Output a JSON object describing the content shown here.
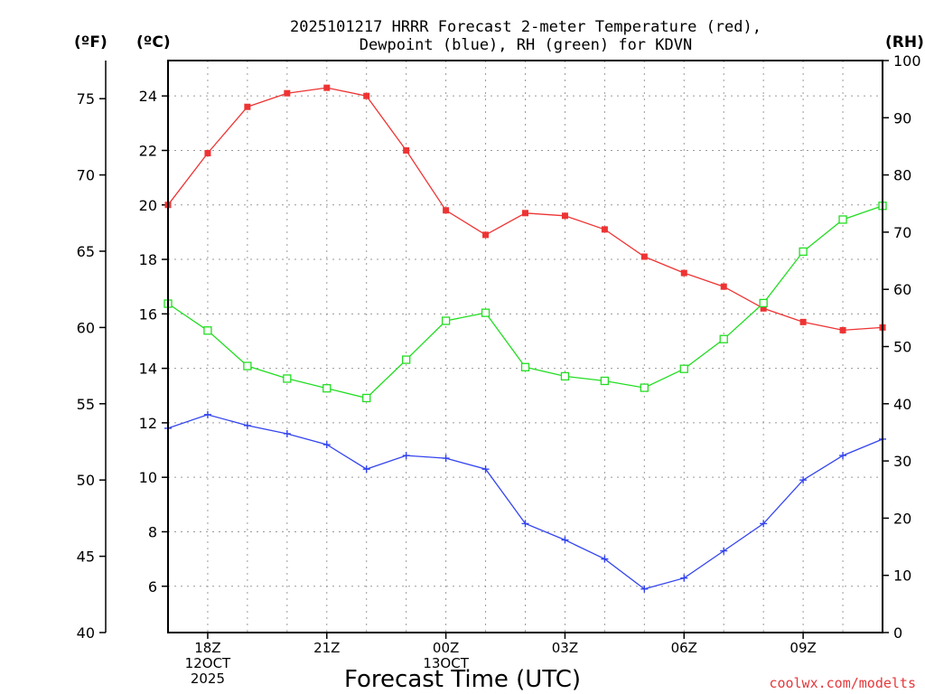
{
  "chart_data": {
    "type": "line",
    "title": "2025101217 HRRR Forecast 2-meter Temperature (red),",
    "subtitle": "Dewpoint (blue), RH (green) for KDVN",
    "xlabel": "Forecast Time (UTC)",
    "credit": "coolwx.com/modelts",
    "units": {
      "fahrenheit": "(ºF)",
      "celsius": "(ºC)",
      "rh": "(RH)"
    },
    "x": [
      17,
      18,
      19,
      20,
      21,
      22,
      23,
      24,
      25,
      26,
      27,
      28,
      29,
      30,
      31,
      32,
      33,
      34,
      35
    ],
    "xlim": [
      17,
      35
    ],
    "x_ticks": [
      {
        "x": 18,
        "lines": [
          "18Z",
          "12OCT",
          "2025"
        ]
      },
      {
        "x": 21,
        "lines": [
          "21Z"
        ]
      },
      {
        "x": 24,
        "lines": [
          "00Z",
          "13OCT"
        ]
      },
      {
        "x": 27,
        "lines": [
          "03Z"
        ]
      },
      {
        "x": 30,
        "lines": [
          "06Z"
        ]
      },
      {
        "x": 33,
        "lines": [
          "09Z"
        ]
      }
    ],
    "y_celsius": {
      "range": [
        4.3,
        25.3
      ],
      "ticks": [
        6,
        8,
        10,
        12,
        14,
        16,
        18,
        20,
        22,
        24
      ]
    },
    "y_fahrenheit": {
      "range": [
        40,
        77.5
      ],
      "ticks": [
        40,
        45,
        50,
        55,
        60,
        65,
        70,
        75
      ]
    },
    "y_rh": {
      "range": [
        0,
        100
      ],
      "ticks": [
        0,
        10,
        20,
        30,
        40,
        50,
        60,
        70,
        80,
        90,
        100
      ]
    },
    "series": [
      {
        "name": "Temperature",
        "axis": "celsius",
        "color": "#ee3333",
        "marker": "filled-square",
        "values": [
          20.0,
          21.9,
          23.6,
          24.1,
          24.3,
          24.0,
          22.0,
          19.8,
          18.9,
          19.7,
          19.6,
          19.1,
          18.1,
          17.5,
          17.0,
          16.2,
          15.7,
          15.4,
          15.5
        ]
      },
      {
        "name": "Dewpoint",
        "axis": "celsius",
        "color": "#3344ee",
        "marker": "plus",
        "values": [
          11.8,
          12.3,
          11.9,
          11.6,
          11.2,
          10.3,
          10.8,
          10.7,
          10.3,
          8.3,
          7.7,
          7.0,
          5.9,
          6.3,
          7.3,
          8.3,
          9.9,
          10.8,
          11.4
        ]
      },
      {
        "name": "RH",
        "axis": "rh",
        "color": "#22dd22",
        "marker": "open-square",
        "values": [
          57.5,
          52.8,
          46.6,
          44.4,
          42.7,
          41.0,
          47.7,
          54.5,
          55.9,
          46.4,
          44.8,
          44.0,
          42.8,
          46.1,
          51.3,
          57.6,
          66.6,
          72.2,
          74.6
        ]
      }
    ]
  }
}
